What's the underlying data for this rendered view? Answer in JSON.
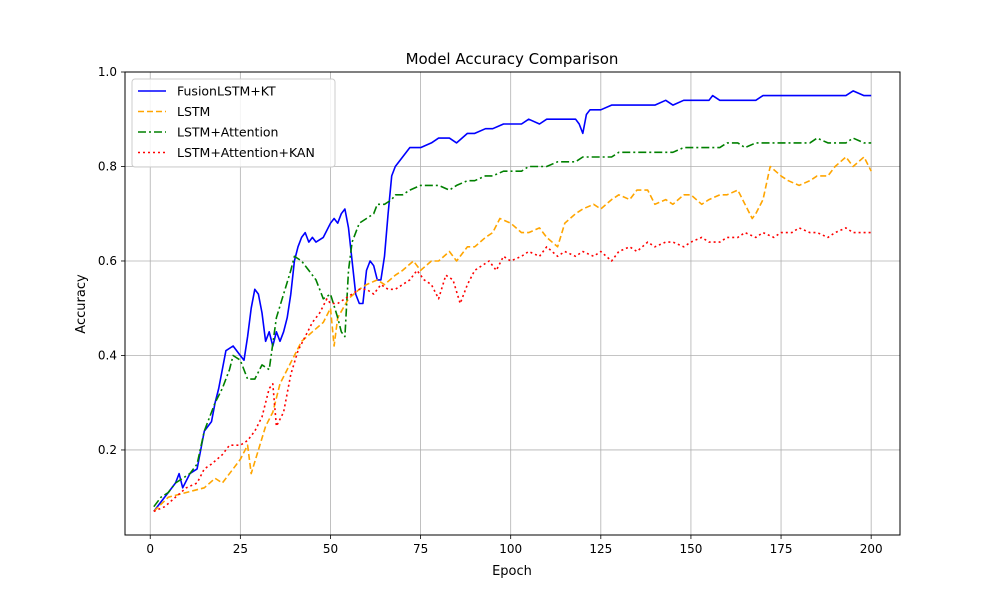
{
  "chart_data": {
    "type": "line",
    "title": "Model Accuracy Comparison",
    "xlabel": "Epoch",
    "ylabel": "Accuracy",
    "xlim": [
      -7,
      208
    ],
    "ylim": [
      0.02,
      1.0
    ],
    "xticks": [
      0,
      25,
      50,
      75,
      100,
      125,
      150,
      175,
      200
    ],
    "yticks": [
      0.2,
      0.4,
      0.6,
      0.8,
      1.0
    ],
    "grid": true,
    "legend_position": "top-left",
    "series": [
      {
        "name": "FusionLSTM+KT",
        "color": "#0000ff",
        "dash": "solid",
        "x": [
          1,
          3,
          5,
          7,
          8,
          9,
          11,
          13,
          14,
          15,
          17,
          18,
          19,
          20,
          21,
          23,
          25,
          26,
          27,
          28,
          29,
          30,
          31,
          32,
          33,
          34,
          35,
          36,
          37,
          38,
          39,
          40,
          41,
          42,
          43,
          44,
          45,
          46,
          48,
          50,
          51,
          52,
          53,
          54,
          55,
          56,
          57,
          58,
          59,
          60,
          61,
          62,
          63,
          64,
          65,
          66,
          67,
          68,
          70,
          72,
          75,
          78,
          80,
          83,
          85,
          88,
          90,
          93,
          95,
          98,
          100,
          103,
          105,
          108,
          110,
          113,
          115,
          118,
          119,
          120,
          121,
          122,
          123,
          125,
          128,
          130,
          133,
          135,
          138,
          140,
          143,
          145,
          148,
          150,
          153,
          155,
          156,
          158,
          160,
          163,
          165,
          168,
          170,
          173,
          175,
          178,
          180,
          183,
          185,
          188,
          190,
          193,
          195,
          198,
          200
        ],
        "y": [
          0.07,
          0.09,
          0.11,
          0.13,
          0.15,
          0.12,
          0.15,
          0.16,
          0.2,
          0.24,
          0.26,
          0.3,
          0.33,
          0.37,
          0.41,
          0.42,
          0.4,
          0.39,
          0.44,
          0.5,
          0.54,
          0.53,
          0.49,
          0.43,
          0.45,
          0.42,
          0.45,
          0.43,
          0.45,
          0.48,
          0.53,
          0.6,
          0.63,
          0.65,
          0.66,
          0.64,
          0.65,
          0.64,
          0.65,
          0.68,
          0.69,
          0.68,
          0.7,
          0.71,
          0.67,
          0.6,
          0.53,
          0.51,
          0.51,
          0.58,
          0.6,
          0.59,
          0.56,
          0.56,
          0.61,
          0.7,
          0.78,
          0.8,
          0.82,
          0.84,
          0.84,
          0.85,
          0.86,
          0.86,
          0.85,
          0.87,
          0.87,
          0.88,
          0.88,
          0.89,
          0.89,
          0.89,
          0.9,
          0.89,
          0.9,
          0.9,
          0.9,
          0.9,
          0.89,
          0.87,
          0.91,
          0.92,
          0.92,
          0.92,
          0.93,
          0.93,
          0.93,
          0.93,
          0.93,
          0.93,
          0.94,
          0.93,
          0.94,
          0.94,
          0.94,
          0.94,
          0.95,
          0.94,
          0.94,
          0.94,
          0.94,
          0.94,
          0.95,
          0.95,
          0.95,
          0.95,
          0.95,
          0.95,
          0.95,
          0.95,
          0.95,
          0.95,
          0.96,
          0.95,
          0.95
        ]
      },
      {
        "name": "LSTM",
        "color": "#ffa500",
        "dash": "dashed",
        "x": [
          1,
          5,
          10,
          15,
          18,
          20,
          23,
          25,
          27,
          28,
          30,
          32,
          34,
          36,
          38,
          40,
          42,
          45,
          48,
          50,
          51,
          52,
          55,
          58,
          60,
          63,
          65,
          68,
          70,
          73,
          75,
          78,
          80,
          83,
          85,
          88,
          90,
          93,
          95,
          97,
          100,
          103,
          105,
          108,
          110,
          113,
          115,
          118,
          120,
          123,
          125,
          128,
          130,
          133,
          135,
          138,
          140,
          143,
          145,
          148,
          150,
          153,
          155,
          158,
          160,
          163,
          165,
          167,
          168,
          170,
          172,
          175,
          177,
          180,
          183,
          185,
          188,
          190,
          193,
          195,
          198,
          200
        ],
        "y": [
          0.07,
          0.1,
          0.11,
          0.12,
          0.14,
          0.13,
          0.16,
          0.18,
          0.21,
          0.15,
          0.2,
          0.25,
          0.28,
          0.34,
          0.37,
          0.4,
          0.43,
          0.45,
          0.47,
          0.5,
          0.42,
          0.48,
          0.52,
          0.54,
          0.55,
          0.56,
          0.55,
          0.57,
          0.58,
          0.6,
          0.58,
          0.6,
          0.6,
          0.62,
          0.6,
          0.63,
          0.63,
          0.65,
          0.66,
          0.69,
          0.68,
          0.66,
          0.66,
          0.67,
          0.65,
          0.63,
          0.68,
          0.7,
          0.71,
          0.72,
          0.71,
          0.73,
          0.74,
          0.73,
          0.75,
          0.75,
          0.72,
          0.73,
          0.72,
          0.74,
          0.74,
          0.72,
          0.73,
          0.74,
          0.74,
          0.75,
          0.72,
          0.69,
          0.7,
          0.73,
          0.8,
          0.78,
          0.77,
          0.76,
          0.77,
          0.78,
          0.78,
          0.8,
          0.82,
          0.8,
          0.82,
          0.79
        ]
      },
      {
        "name": "LSTM+Attention",
        "color": "#008000",
        "dash": "dashdot",
        "x": [
          1,
          3,
          5,
          7,
          9,
          11,
          13,
          15,
          18,
          20,
          22,
          23,
          25,
          27,
          29,
          31,
          33,
          35,
          37,
          39,
          40,
          42,
          44,
          46,
          48,
          50,
          52,
          53,
          54,
          55,
          56,
          58,
          60,
          62,
          63,
          65,
          67,
          68,
          70,
          72,
          75,
          78,
          80,
          83,
          85,
          88,
          90,
          93,
          95,
          98,
          100,
          103,
          105,
          108,
          110,
          113,
          115,
          118,
          120,
          123,
          125,
          128,
          130,
          133,
          135,
          138,
          140,
          143,
          145,
          148,
          150,
          153,
          155,
          158,
          160,
          163,
          165,
          168,
          170,
          173,
          175,
          178,
          180,
          183,
          185,
          188,
          190,
          193,
          195,
          198,
          200
        ],
        "y": [
          0.08,
          0.1,
          0.11,
          0.13,
          0.14,
          0.15,
          0.17,
          0.24,
          0.3,
          0.33,
          0.37,
          0.4,
          0.39,
          0.35,
          0.35,
          0.38,
          0.37,
          0.48,
          0.53,
          0.58,
          0.61,
          0.6,
          0.58,
          0.56,
          0.52,
          0.53,
          0.48,
          0.45,
          0.44,
          0.58,
          0.64,
          0.68,
          0.69,
          0.7,
          0.72,
          0.72,
          0.73,
          0.74,
          0.74,
          0.75,
          0.76,
          0.76,
          0.76,
          0.75,
          0.76,
          0.77,
          0.77,
          0.78,
          0.78,
          0.79,
          0.79,
          0.79,
          0.8,
          0.8,
          0.8,
          0.81,
          0.81,
          0.81,
          0.82,
          0.82,
          0.82,
          0.82,
          0.83,
          0.83,
          0.83,
          0.83,
          0.83,
          0.83,
          0.83,
          0.84,
          0.84,
          0.84,
          0.84,
          0.84,
          0.85,
          0.85,
          0.84,
          0.85,
          0.85,
          0.85,
          0.85,
          0.85,
          0.85,
          0.85,
          0.86,
          0.85,
          0.85,
          0.85,
          0.86,
          0.85,
          0.85
        ]
      },
      {
        "name": "LSTM+Attention+KAN",
        "color": "#ff0000",
        "dash": "dotted",
        "x": [
          1,
          4,
          7,
          10,
          13,
          15,
          17,
          20,
          22,
          25,
          27,
          29,
          31,
          33,
          34,
          35,
          37,
          39,
          41,
          43,
          45,
          47,
          49,
          50,
          52,
          54,
          56,
          58,
          60,
          62,
          64,
          66,
          68,
          70,
          72,
          74,
          76,
          78,
          80,
          82,
          84,
          86,
          88,
          90,
          92,
          94,
          96,
          98,
          100,
          103,
          105,
          108,
          110,
          113,
          115,
          118,
          120,
          123,
          125,
          128,
          130,
          133,
          135,
          138,
          140,
          143,
          145,
          148,
          150,
          153,
          155,
          158,
          160,
          163,
          165,
          168,
          170,
          173,
          175,
          178,
          180,
          183,
          185,
          188,
          190,
          193,
          195,
          198,
          200
        ],
        "y": [
          0.07,
          0.08,
          0.1,
          0.12,
          0.13,
          0.16,
          0.17,
          0.19,
          0.21,
          0.21,
          0.22,
          0.24,
          0.27,
          0.33,
          0.34,
          0.25,
          0.28,
          0.36,
          0.41,
          0.44,
          0.47,
          0.49,
          0.52,
          0.51,
          0.51,
          0.52,
          0.53,
          0.54,
          0.54,
          0.53,
          0.55,
          0.54,
          0.54,
          0.55,
          0.56,
          0.58,
          0.56,
          0.55,
          0.52,
          0.57,
          0.56,
          0.51,
          0.55,
          0.58,
          0.59,
          0.6,
          0.58,
          0.61,
          0.6,
          0.61,
          0.62,
          0.61,
          0.63,
          0.61,
          0.62,
          0.61,
          0.62,
          0.61,
          0.62,
          0.6,
          0.62,
          0.63,
          0.62,
          0.64,
          0.63,
          0.64,
          0.64,
          0.63,
          0.64,
          0.65,
          0.64,
          0.64,
          0.65,
          0.65,
          0.66,
          0.65,
          0.66,
          0.65,
          0.66,
          0.66,
          0.67,
          0.66,
          0.66,
          0.65,
          0.66,
          0.67,
          0.66,
          0.66,
          0.66
        ]
      }
    ]
  }
}
